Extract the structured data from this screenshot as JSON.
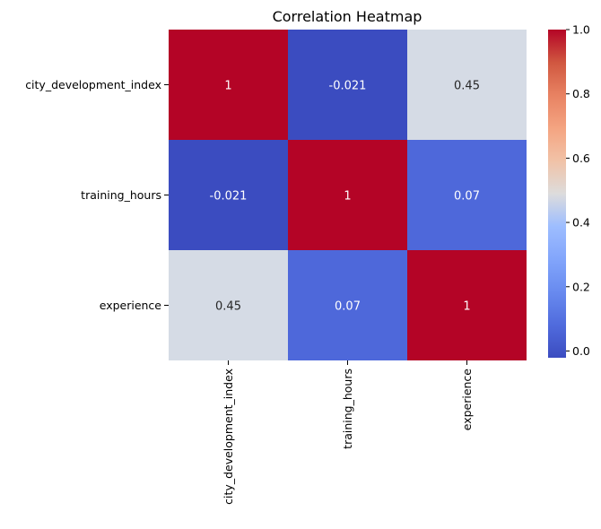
{
  "chart_data": {
    "type": "heatmap",
    "title": "Correlation Heatmap",
    "rows": [
      "city_development_index",
      "training_hours",
      "experience"
    ],
    "columns": [
      "city_development_index",
      "training_hours",
      "experience"
    ],
    "values": [
      [
        1,
        -0.021,
        0.45
      ],
      [
        -0.021,
        1,
        0.07
      ],
      [
        0.45,
        0.07,
        1
      ]
    ],
    "annotations": [
      [
        "1",
        "-0.021",
        "0.45"
      ],
      [
        "-0.021",
        "1",
        "0.07"
      ],
      [
        "0.45",
        "0.07",
        "1"
      ]
    ],
    "colormap": "coolwarm",
    "colorbar": {
      "vmin": -0.021,
      "vmax": 1,
      "ticks": [
        0.0,
        0.2,
        0.4,
        0.6,
        0.8,
        1.0
      ],
      "tick_labels": [
        "0.0",
        "0.2",
        "0.4",
        "0.6",
        "0.8",
        "1.0"
      ],
      "placement": "right"
    },
    "colors": {
      "low": "#3b4cc0",
      "mid": "#dddcdc",
      "high": "#b40426"
    }
  }
}
